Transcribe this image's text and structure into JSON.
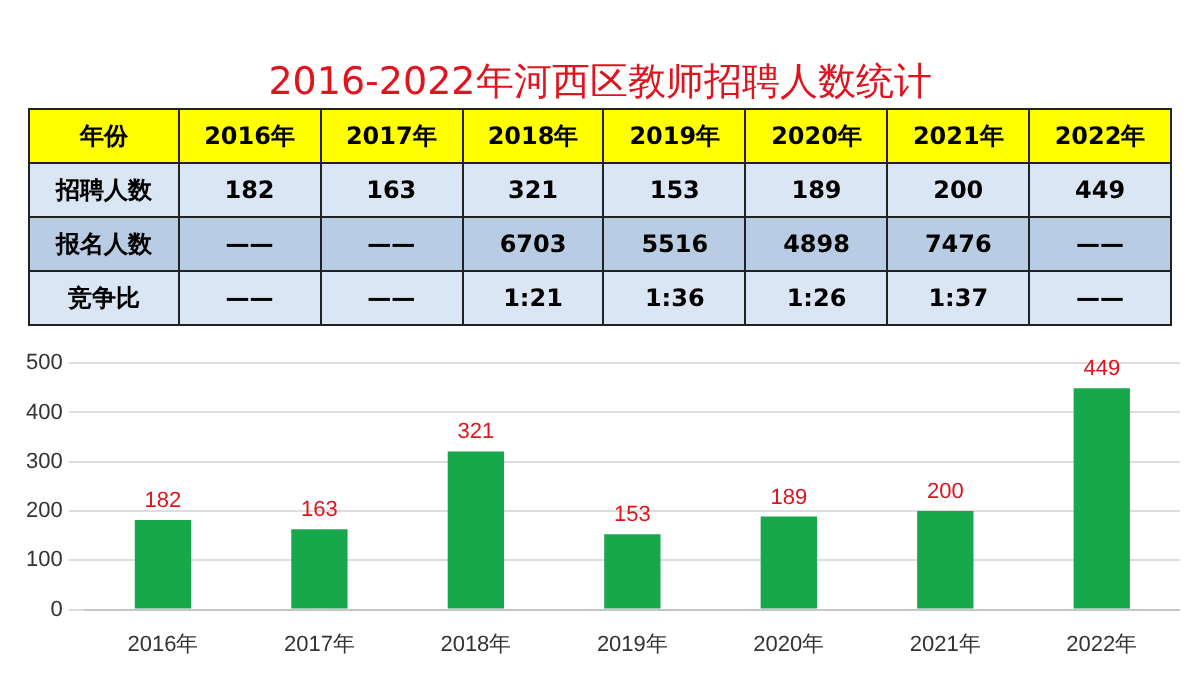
{
  "chart_data": {
    "type": "bar",
    "title": "2016-2022年河西区教师招聘人数统计",
    "categories": [
      "2016年",
      "2017年",
      "2018年",
      "2019年",
      "2020年",
      "2021年",
      "2022年"
    ],
    "values": [
      182,
      163,
      321,
      153,
      189,
      200,
      449
    ],
    "color": "#18a84c",
    "ylim": [
      0,
      500
    ],
    "yticks": [
      0,
      100,
      200,
      300,
      400,
      500
    ],
    "grid": "y",
    "data_labels": true,
    "legend": false,
    "annotations": [
      "年份",
      "2016年",
      "2017年",
      "2018年",
      "2019年",
      "2020年",
      "2021年",
      "2022年",
      "招聘人数",
      "182",
      "163",
      "321",
      "153",
      "189",
      "200",
      "449",
      "报名人数",
      "——",
      "——",
      "6703",
      "5516",
      "4898",
      "7476",
      "——",
      "竞争比",
      "——",
      "——",
      "1:21",
      "1:36",
      "1:26",
      "1:37",
      "——"
    ]
  }
}
